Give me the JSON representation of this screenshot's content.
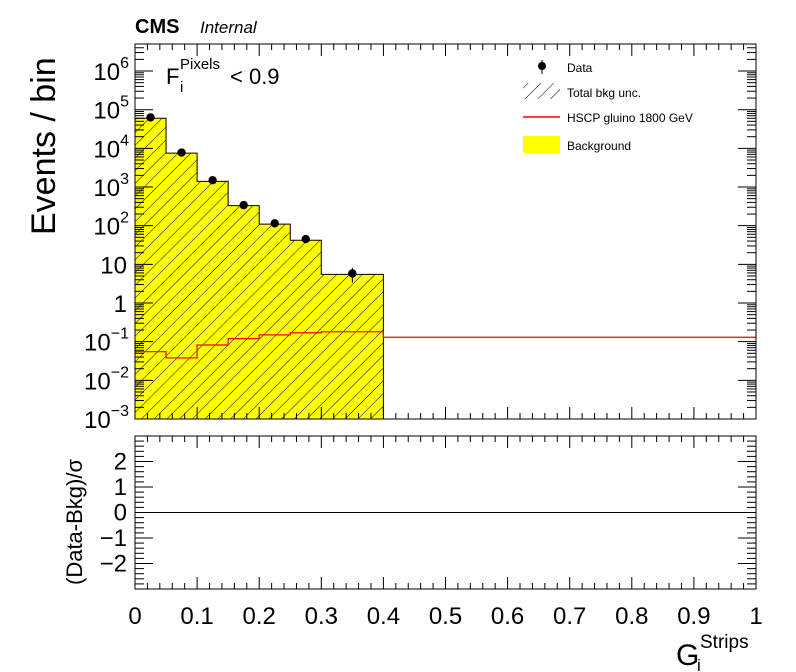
{
  "header": {
    "experiment": "CMS",
    "status": "Internal"
  },
  "annotation": {
    "base": "F",
    "sub": "i",
    "sup": "Pixels",
    "cut": "< 0.9"
  },
  "chart_data": [
    {
      "type": "bar",
      "panel": "main",
      "ylabel": "Events / bin",
      "yscale": "log",
      "ylim": [
        0.001,
        5000000
      ],
      "xlim": [
        0,
        1
      ],
      "y_tick_labels": [
        "10^-3",
        "10^-2",
        "10^-1",
        "1",
        "10",
        "10^2",
        "10^3",
        "10^4",
        "10^5",
        "10^6"
      ],
      "legend": {
        "position": "top-right",
        "entries": [
          "Data",
          "Total bkg unc.",
          "HSCP gluino 1800 GeV",
          "Background"
        ]
      },
      "series": [
        {
          "name": "Background",
          "kind": "filled-histogram",
          "color": "#ffff00",
          "hatch": "Total bkg unc.",
          "bin_edges": [
            0,
            0.05,
            0.1,
            0.15,
            0.2,
            0.25,
            0.3,
            0.4
          ],
          "values": [
            60000,
            7500,
            1400,
            330,
            110,
            42,
            5.5
          ]
        },
        {
          "name": "HSCP gluino 1800 GeV",
          "kind": "line-histogram",
          "color": "#ff0000",
          "bin_edges": [
            0,
            0.05,
            0.1,
            0.15,
            0.2,
            0.25,
            0.3,
            0.4,
            1.0
          ],
          "values": [
            0.055,
            0.038,
            0.082,
            0.12,
            0.15,
            0.17,
            0.18,
            0.13
          ]
        },
        {
          "name": "Data",
          "kind": "points",
          "color": "#000000",
          "x": [
            0.025,
            0.075,
            0.125,
            0.175,
            0.225,
            0.275,
            0.35
          ],
          "y": [
            63000,
            7800,
            1500,
            340,
            115,
            45,
            5.8
          ]
        }
      ]
    },
    {
      "type": "line",
      "panel": "ratio",
      "ylabel": "(Data-Bkg)/σ",
      "xlabel_base": "G",
      "xlabel_sub": "i",
      "xlabel_sup": "Strips",
      "ylim": [
        -3,
        3
      ],
      "xlim": [
        0,
        1
      ],
      "y_ticks": [
        -2,
        -1,
        0,
        1,
        2
      ],
      "y_tick_labels": [
        "−2",
        "−1",
        "0",
        "1",
        "2"
      ],
      "x_ticks": [
        0,
        0.1,
        0.2,
        0.3,
        0.4,
        0.5,
        0.6,
        0.7,
        0.8,
        0.9,
        1
      ],
      "x_tick_labels": [
        "0",
        "0.1",
        "0.2",
        "0.3",
        "0.4",
        "0.5",
        "0.6",
        "0.7",
        "0.8",
        "0.9",
        "1"
      ],
      "reference_line": 0
    }
  ]
}
